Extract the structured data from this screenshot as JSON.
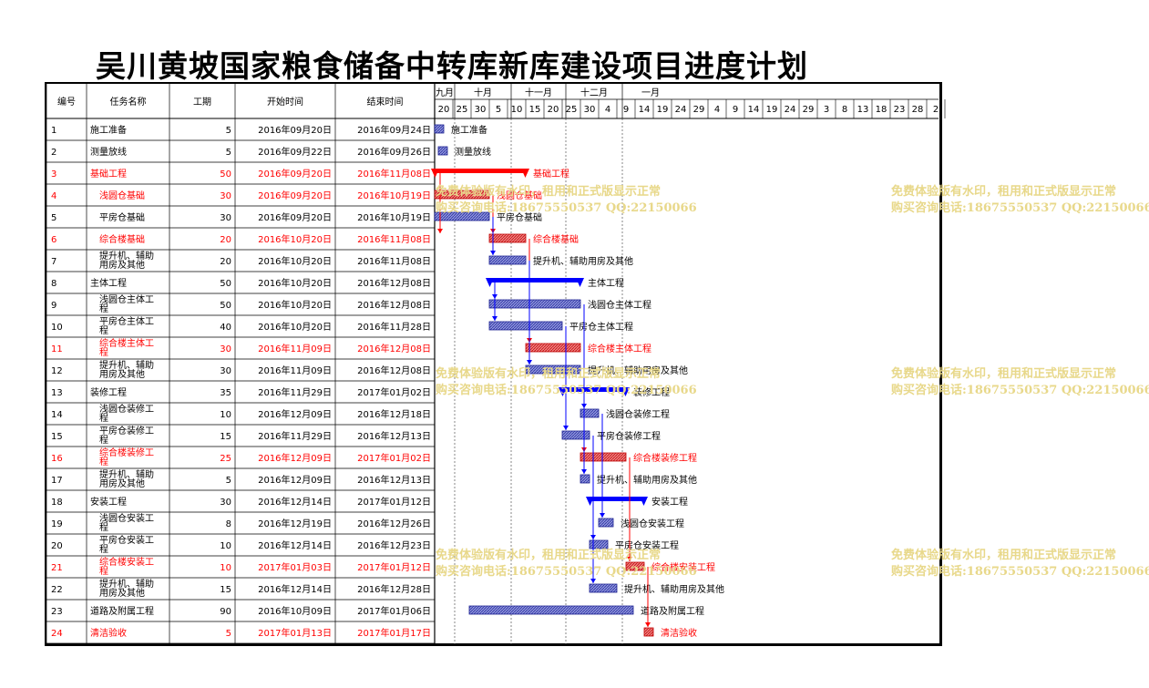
{
  "title": "吴川黄坡国家粮食储备中转库新库建设项目进度计划",
  "columns": [
    "编号",
    "任务名称",
    "工期",
    "开始时间",
    "结束时间"
  ],
  "months": [
    "九月",
    "十月",
    "十一月",
    "十二月",
    "一月"
  ],
  "day_ticks": [
    "20",
    "25",
    "30",
    "5",
    "10",
    "15",
    "20",
    "25",
    "30",
    "4",
    "9",
    "14",
    "19",
    "24",
    "29",
    "4",
    "9",
    "14",
    "19",
    "24",
    "29",
    "3",
    "8",
    "13",
    "18",
    "23",
    "28",
    "2"
  ],
  "colors": {
    "summary_blue": "#0000ff",
    "critical_red": "#ff0000",
    "bar_fill": "#6f76c9",
    "bar_fill_red": "#e05050",
    "watermark": "#e8d88a"
  },
  "watermark": {
    "line1": "免费体验版有水印，租用和正式版显示正常",
    "line2": "购买咨询电话:18675550537 QQ:22150066"
  },
  "tasks": [
    {
      "id": "1",
      "name": "施工准备",
      "dur": "5",
      "start": "2016年09月20日",
      "end": "2016年09月24日",
      "red": false,
      "summary": false,
      "indent": 0
    },
    {
      "id": "2",
      "name": "测量放线",
      "dur": "5",
      "start": "2016年09月22日",
      "end": "2016年09月26日",
      "red": false,
      "summary": false,
      "indent": 0
    },
    {
      "id": "3",
      "name": "基础工程",
      "dur": "50",
      "start": "2016年09月20日",
      "end": "2016年11月08日",
      "red": true,
      "summary": true,
      "indent": 0
    },
    {
      "id": "4",
      "name": "浅圆仓基础",
      "dur": "30",
      "start": "2016年09月20日",
      "end": "2016年10月19日",
      "red": true,
      "summary": false,
      "indent": 1
    },
    {
      "id": "5",
      "name": "平房仓基础",
      "dur": "30",
      "start": "2016年09月20日",
      "end": "2016年10月19日",
      "red": false,
      "summary": false,
      "indent": 1
    },
    {
      "id": "6",
      "name": "综合楼基础",
      "dur": "20",
      "start": "2016年10月20日",
      "end": "2016年11月08日",
      "red": true,
      "summary": false,
      "indent": 1
    },
    {
      "id": "7",
      "name": "提升机、辅助用房及其他",
      "dur": "20",
      "start": "2016年10月20日",
      "end": "2016年11月08日",
      "red": false,
      "summary": false,
      "indent": 1
    },
    {
      "id": "8",
      "name": "主体工程",
      "dur": "50",
      "start": "2016年10月20日",
      "end": "2016年12月08日",
      "red": false,
      "summary": true,
      "indent": 0
    },
    {
      "id": "9",
      "name": "浅圆仓主体工程",
      "dur": "50",
      "start": "2016年10月20日",
      "end": "2016年12月08日",
      "red": false,
      "summary": false,
      "indent": 1
    },
    {
      "id": "10",
      "name": "平房仓主体工程",
      "dur": "40",
      "start": "2016年10月20日",
      "end": "2016年11月28日",
      "red": false,
      "summary": false,
      "indent": 1
    },
    {
      "id": "11",
      "name": "综合楼主体工程",
      "dur": "30",
      "start": "2016年11月09日",
      "end": "2016年12月08日",
      "red": true,
      "summary": false,
      "indent": 1
    },
    {
      "id": "12",
      "name": "提升机、辅助用房及其他",
      "dur": "30",
      "start": "2016年11月09日",
      "end": "2016年12月08日",
      "red": false,
      "summary": false,
      "indent": 1
    },
    {
      "id": "13",
      "name": "装修工程",
      "dur": "35",
      "start": "2016年11月29日",
      "end": "2017年01月02日",
      "red": false,
      "summary": true,
      "indent": 0
    },
    {
      "id": "14",
      "name": "浅圆仓装修工程",
      "dur": "10",
      "start": "2016年12月09日",
      "end": "2016年12月18日",
      "red": false,
      "summary": false,
      "indent": 1
    },
    {
      "id": "15",
      "name": "平房仓装修工程",
      "dur": "15",
      "start": "2016年11月29日",
      "end": "2016年12月13日",
      "red": false,
      "summary": false,
      "indent": 1
    },
    {
      "id": "16",
      "name": "综合楼装修工程",
      "dur": "25",
      "start": "2016年12月09日",
      "end": "2017年01月02日",
      "red": true,
      "summary": false,
      "indent": 1
    },
    {
      "id": "17",
      "name": "提升机、辅助用房及其他",
      "dur": "5",
      "start": "2016年12月09日",
      "end": "2016年12月13日",
      "red": false,
      "summary": false,
      "indent": 1
    },
    {
      "id": "18",
      "name": "安装工程",
      "dur": "30",
      "start": "2016年12月14日",
      "end": "2017年01月12日",
      "red": false,
      "summary": true,
      "indent": 0
    },
    {
      "id": "19",
      "name": "浅圆仓安装工程",
      "dur": "8",
      "start": "2016年12月19日",
      "end": "2016年12月26日",
      "red": false,
      "summary": false,
      "indent": 1
    },
    {
      "id": "20",
      "name": "平房仓安装工程",
      "dur": "10",
      "start": "2016年12月14日",
      "end": "2016年12月23日",
      "red": false,
      "summary": false,
      "indent": 1
    },
    {
      "id": "21",
      "name": "综合楼安装工程",
      "dur": "10",
      "start": "2017年01月03日",
      "end": "2017年01月12日",
      "red": true,
      "summary": false,
      "indent": 1
    },
    {
      "id": "22",
      "name": "提升机、辅助用房及其他",
      "dur": "15",
      "start": "2016年12月14日",
      "end": "2016年12月28日",
      "red": false,
      "summary": false,
      "indent": 1
    },
    {
      "id": "23",
      "name": "道路及附属工程",
      "dur": "90",
      "start": "2016年10月09日",
      "end": "2017年01月06日",
      "red": false,
      "summary": false,
      "indent": 0
    },
    {
      "id": "24",
      "name": "清洁验收",
      "dur": "5",
      "start": "2017年01月13日",
      "end": "2017年01月17日",
      "red": true,
      "summary": false,
      "indent": 0
    }
  ],
  "links": [
    {
      "from": "3",
      "to": "6",
      "color": "red",
      "kind": "start"
    },
    {
      "from": "4",
      "to": "6",
      "color": "red",
      "kind": "end"
    },
    {
      "from": "5",
      "to": "7",
      "color": "blue",
      "kind": "end"
    },
    {
      "from": "6",
      "to": "11",
      "color": "red",
      "kind": "end"
    },
    {
      "from": "7",
      "to": "12",
      "color": "blue",
      "kind": "end"
    },
    {
      "from": "8",
      "to": "9",
      "color": "blue",
      "kind": "start"
    },
    {
      "from": "8",
      "to": "10",
      "color": "blue",
      "kind": "start"
    },
    {
      "from": "10",
      "to": "15",
      "color": "blue",
      "kind": "end"
    },
    {
      "from": "11",
      "to": "16",
      "color": "red",
      "kind": "end"
    },
    {
      "from": "9",
      "to": "14",
      "color": "blue",
      "kind": "end"
    },
    {
      "from": "12",
      "to": "17",
      "color": "blue",
      "kind": "end"
    },
    {
      "from": "14",
      "to": "19",
      "color": "blue",
      "kind": "end"
    },
    {
      "from": "15",
      "to": "20",
      "color": "blue",
      "kind": "end"
    },
    {
      "from": "16",
      "to": "21",
      "color": "red",
      "kind": "end"
    },
    {
      "from": "17",
      "to": "22",
      "color": "blue",
      "kind": "end"
    },
    {
      "from": "21",
      "to": "24",
      "color": "red",
      "kind": "end"
    }
  ]
}
